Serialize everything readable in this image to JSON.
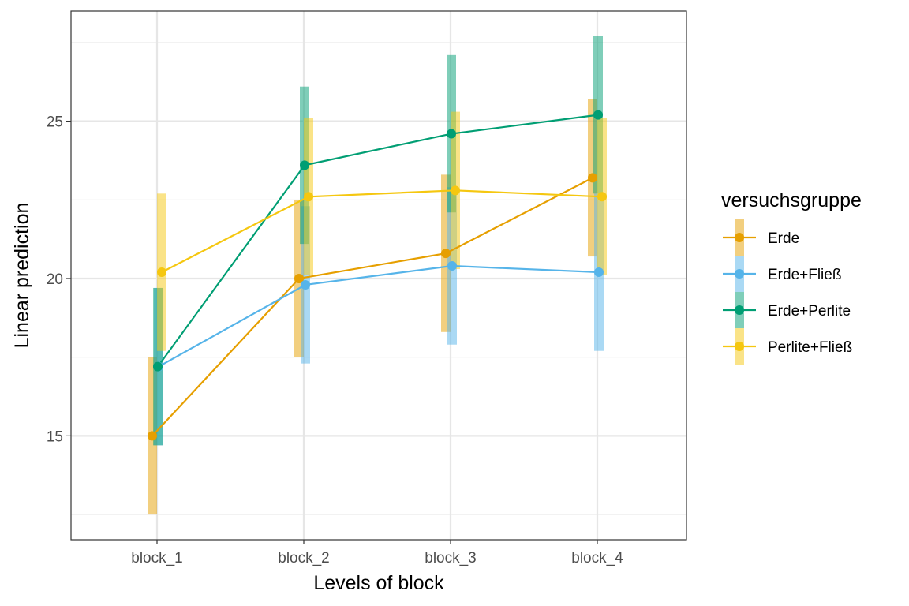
{
  "chart_data": {
    "type": "line",
    "xlabel": "Levels of block",
    "ylabel": "Linear prediction",
    "categories": [
      "block_1",
      "block_2",
      "block_3",
      "block_4"
    ],
    "ylim": [
      11.7,
      28.5
    ],
    "yticks": [
      15,
      20,
      25
    ],
    "grid": true,
    "legend": {
      "title": "versuchsgruppe",
      "placement": "right"
    },
    "series": [
      {
        "name": "Erde",
        "color": "#E69F00",
        "values": [
          15.0,
          20.0,
          20.8,
          23.2
        ],
        "ci_low": [
          12.5,
          17.5,
          18.3,
          20.7
        ],
        "ci_high": [
          17.5,
          22.5,
          23.3,
          25.7
        ]
      },
      {
        "name": "Erde+Fließ",
        "color": "#56B4E9",
        "values": [
          17.2,
          19.8,
          20.4,
          20.2
        ],
        "ci_low": [
          14.7,
          17.3,
          17.9,
          17.7
        ],
        "ci_high": [
          19.7,
          22.3,
          22.9,
          22.7
        ]
      },
      {
        "name": "Erde+Perlite",
        "color": "#009E73",
        "values": [
          17.2,
          23.6,
          24.6,
          25.2
        ],
        "ci_low": [
          14.7,
          21.1,
          22.1,
          22.7
        ],
        "ci_high": [
          19.7,
          26.1,
          27.1,
          27.7
        ]
      },
      {
        "name": "Perlite+Fließ",
        "color": "#F5C710",
        "values": [
          20.2,
          22.6,
          22.8,
          22.6
        ],
        "ci_low": [
          17.7,
          20.1,
          20.3,
          20.1
        ],
        "ci_high": [
          22.7,
          25.1,
          25.3,
          25.1
        ]
      }
    ]
  }
}
